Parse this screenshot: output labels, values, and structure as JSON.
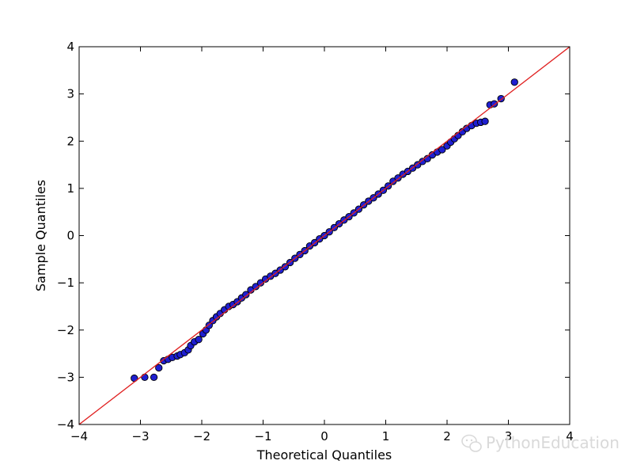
{
  "chart_data": {
    "type": "scatter",
    "title": "",
    "xlabel": "Theoretical Quantiles",
    "ylabel": "Sample Quantiles",
    "xlim": [
      -4,
      4
    ],
    "ylim": [
      -4,
      4
    ],
    "xticks": [
      -4,
      -3,
      -2,
      -1,
      0,
      1,
      2,
      3,
      4
    ],
    "yticks": [
      -4,
      -3,
      -2,
      -1,
      0,
      1,
      2,
      3,
      4
    ],
    "xtick_labels": [
      "−4",
      "−3",
      "−2",
      "−1",
      "0",
      "1",
      "2",
      "3",
      "4"
    ],
    "ytick_labels": [
      "−4",
      "−3",
      "−2",
      "−1",
      "0",
      "1",
      "2",
      "3",
      "4"
    ],
    "grid": false,
    "reference_line": {
      "slope": 1,
      "intercept": 0,
      "color": "#e02020"
    },
    "marker_color": "#1f1fd0",
    "marker_edge_color": "#000000",
    "sample_points": [
      [
        -3.1,
        -3.02
      ],
      [
        -2.93,
        -3.0
      ],
      [
        -2.78,
        -3.0
      ],
      [
        -2.7,
        -2.8
      ],
      [
        -2.62,
        -2.65
      ],
      [
        -2.55,
        -2.62
      ],
      [
        -2.48,
        -2.58
      ],
      [
        -2.4,
        -2.55
      ],
      [
        -2.35,
        -2.52
      ],
      [
        -2.28,
        -2.48
      ],
      [
        -2.22,
        -2.42
      ],
      [
        -2.18,
        -2.33
      ],
      [
        -2.12,
        -2.25
      ],
      [
        -2.05,
        -2.2
      ],
      [
        -1.98,
        -2.08
      ],
      [
        -1.93,
        -2.0
      ],
      [
        -1.88,
        -1.9
      ],
      [
        -1.82,
        -1.8
      ],
      [
        -1.76,
        -1.72
      ],
      [
        -1.7,
        -1.65
      ],
      [
        -1.63,
        -1.57
      ],
      [
        -1.56,
        -1.5
      ],
      [
        -1.49,
        -1.46
      ],
      [
        -1.42,
        -1.4
      ],
      [
        -1.35,
        -1.32
      ],
      [
        -1.28,
        -1.25
      ],
      [
        -1.2,
        -1.15
      ],
      [
        -1.12,
        -1.08
      ],
      [
        -1.04,
        -1.0
      ],
      [
        -0.96,
        -0.92
      ],
      [
        -0.88,
        -0.86
      ],
      [
        -0.8,
        -0.8
      ],
      [
        -0.72,
        -0.73
      ],
      [
        -0.64,
        -0.66
      ],
      [
        -0.56,
        -0.57
      ],
      [
        -0.48,
        -0.48
      ],
      [
        -0.4,
        -0.4
      ],
      [
        -0.32,
        -0.32
      ],
      [
        -0.24,
        -0.22
      ],
      [
        -0.16,
        -0.15
      ],
      [
        -0.08,
        -0.07
      ],
      [
        0.0,
        0.0
      ],
      [
        0.08,
        0.08
      ],
      [
        0.16,
        0.17
      ],
      [
        0.24,
        0.25
      ],
      [
        0.32,
        0.33
      ],
      [
        0.4,
        0.4
      ],
      [
        0.48,
        0.48
      ],
      [
        0.56,
        0.56
      ],
      [
        0.64,
        0.65
      ],
      [
        0.72,
        0.73
      ],
      [
        0.8,
        0.8
      ],
      [
        0.88,
        0.88
      ],
      [
        0.96,
        0.96
      ],
      [
        1.04,
        1.05
      ],
      [
        1.12,
        1.15
      ],
      [
        1.2,
        1.22
      ],
      [
        1.28,
        1.3
      ],
      [
        1.36,
        1.36
      ],
      [
        1.44,
        1.43
      ],
      [
        1.52,
        1.5
      ],
      [
        1.6,
        1.57
      ],
      [
        1.68,
        1.63
      ],
      [
        1.76,
        1.71
      ],
      [
        1.84,
        1.77
      ],
      [
        1.92,
        1.82
      ],
      [
        2.0,
        1.9
      ],
      [
        2.06,
        1.98
      ],
      [
        2.12,
        2.05
      ],
      [
        2.18,
        2.12
      ],
      [
        2.25,
        2.2
      ],
      [
        2.32,
        2.27
      ],
      [
        2.4,
        2.33
      ],
      [
        2.48,
        2.38
      ],
      [
        2.55,
        2.4
      ],
      [
        2.62,
        2.42
      ],
      [
        2.7,
        2.77
      ],
      [
        2.77,
        2.79
      ],
      [
        2.88,
        2.9
      ],
      [
        3.1,
        3.25
      ]
    ]
  },
  "watermark": {
    "text": "PythonEducation",
    "icon": "wechat-icon"
  }
}
